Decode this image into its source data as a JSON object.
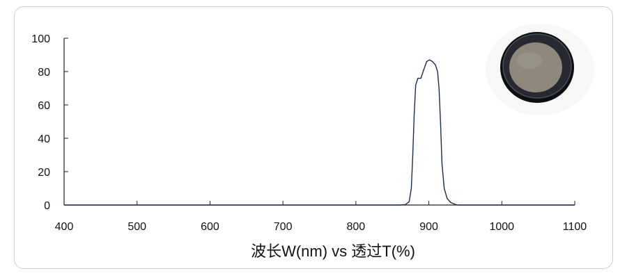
{
  "chart_data": {
    "type": "line",
    "title": "",
    "xlabel": "波长W(nm) vs 透过T(%)",
    "ylabel": "",
    "xlim": [
      400,
      1100
    ],
    "ylim": [
      0,
      100
    ],
    "xticks": [
      400,
      500,
      600,
      700,
      800,
      900,
      1000,
      1100
    ],
    "yticks": [
      0,
      20,
      40,
      60,
      80,
      100
    ],
    "grid": false,
    "legend": "none",
    "series": [
      {
        "color": "#1a2a5a",
        "points": [
          [
            400,
            0
          ],
          [
            860,
            0
          ],
          [
            868,
            0.3
          ],
          [
            873,
            2
          ],
          [
            876,
            10
          ],
          [
            878,
            30
          ],
          [
            880,
            55
          ],
          [
            882,
            72
          ],
          [
            885,
            76
          ],
          [
            889,
            76
          ],
          [
            893,
            81
          ],
          [
            897,
            86
          ],
          [
            901,
            87
          ],
          [
            905,
            86
          ],
          [
            909,
            84
          ],
          [
            912,
            80
          ],
          [
            914,
            70
          ],
          [
            916,
            50
          ],
          [
            918,
            25
          ],
          [
            921,
            10
          ],
          [
            925,
            4
          ],
          [
            930,
            1.5
          ],
          [
            936,
            0.4
          ],
          [
            940,
            0
          ],
          [
            1100,
            0
          ]
        ]
      }
    ]
  },
  "product_image": {
    "icon": "filter-lens-icon"
  }
}
